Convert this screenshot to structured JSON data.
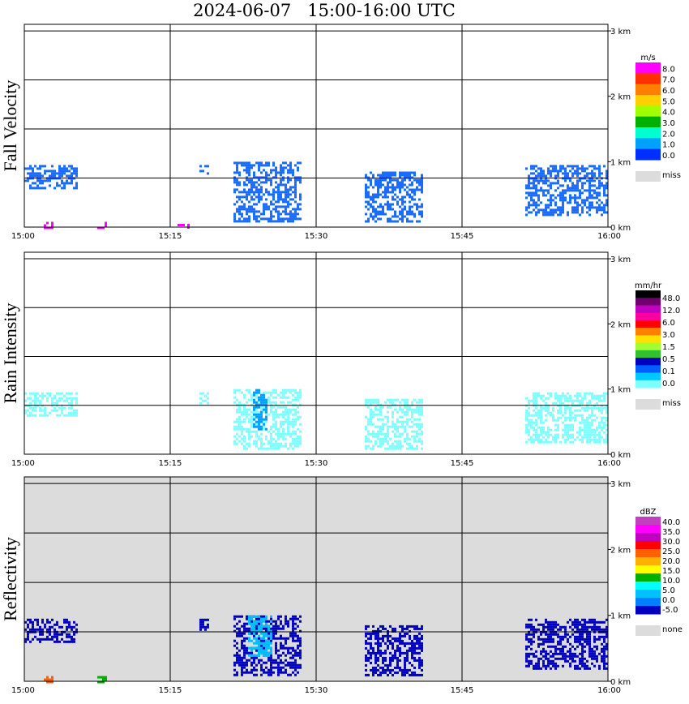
{
  "title": "2024-06-07   15:00-16:00 UTC",
  "x_ticks": [
    "15:00",
    "15:15",
    "15:30",
    "15:45",
    "16:00"
  ],
  "y_ticks": [
    "0 km",
    "1 km",
    "2 km",
    "3 km"
  ],
  "chart_data": [
    {
      "type": "heatmap",
      "ylabel": "Fall Velocity",
      "background": "#ffffff",
      "colorbar": {
        "unit": "m/s",
        "labels": [
          "8.0",
          "7.0",
          "6.0",
          "5.0",
          "4.0",
          "3.0",
          "2.0",
          "1.0",
          "0.0"
        ],
        "colors": [
          "#ff00ff",
          "#ff3000",
          "#ff8000",
          "#ffd000",
          "#a0ff00",
          "#00b000",
          "#00ffd0",
          "#00a0ff",
          "#0030ff"
        ],
        "miss_label": "miss",
        "miss_color": "#dcdcdc"
      },
      "blobs": [
        {
          "t0": 0.0,
          "t1": 5.5,
          "h0": 0.6,
          "h1": 0.95,
          "color": "#1a6cff"
        },
        {
          "t0": 18.0,
          "t1": 18.8,
          "h0": 0.8,
          "h1": 0.95,
          "color": "#1a6cff"
        },
        {
          "t0": 21.5,
          "t1": 28.5,
          "h0": 0.1,
          "h1": 1.0,
          "color": "#1a6cff"
        },
        {
          "t0": 35.0,
          "t1": 41.0,
          "h0": 0.1,
          "h1": 0.85,
          "color": "#1a6cff"
        },
        {
          "t0": 51.5,
          "t1": 60.0,
          "h0": 0.2,
          "h1": 0.95,
          "color": "#1a6cff"
        },
        {
          "t0": 2.0,
          "t1": 3.0,
          "h0": 0.0,
          "h1": 0.08,
          "color": "#ff00ff"
        },
        {
          "t0": 7.5,
          "t1": 8.5,
          "h0": 0.0,
          "h1": 0.08,
          "color": "#ff00ff"
        },
        {
          "t0": 15.5,
          "t1": 17.0,
          "h0": 0.0,
          "h1": 0.05,
          "color": "#ff00ff"
        }
      ]
    },
    {
      "type": "heatmap",
      "ylabel": "Rain Intensity",
      "background": "#ffffff",
      "colorbar": {
        "unit": "mm/hr",
        "labels": [
          "48.0",
          "12.0",
          "6.0",
          "3.0",
          "1.5",
          "0.5",
          "0.1",
          "0.0"
        ],
        "colors": [
          "#000000",
          "#700070",
          "#c000c0",
          "#ff00a0",
          "#ff0000",
          "#ff8000",
          "#ffe000",
          "#a0ff30",
          "#30c030",
          "#0000c0",
          "#0060ff",
          "#00c8ff",
          "#80ffff"
        ],
        "miss_label": "miss",
        "miss_color": "#dcdcdc"
      },
      "blobs": [
        {
          "t0": 0.0,
          "t1": 5.5,
          "h0": 0.6,
          "h1": 0.95,
          "color": "#80ffff"
        },
        {
          "t0": 18.0,
          "t1": 18.8,
          "h0": 0.8,
          "h1": 0.95,
          "color": "#80ffff"
        },
        {
          "t0": 21.5,
          "t1": 28.5,
          "h0": 0.1,
          "h1": 1.0,
          "color": "#80ffff"
        },
        {
          "t0": 23.5,
          "t1": 24.8,
          "h0": 0.4,
          "h1": 1.0,
          "color": "#00a0ff"
        },
        {
          "t0": 35.0,
          "t1": 41.0,
          "h0": 0.1,
          "h1": 0.85,
          "color": "#80ffff"
        },
        {
          "t0": 51.5,
          "t1": 60.0,
          "h0": 0.2,
          "h1": 0.95,
          "color": "#80ffff"
        }
      ]
    },
    {
      "type": "heatmap",
      "ylabel": "Reflectivity",
      "background": "#dcdcdc",
      "colorbar": {
        "unit": "dBZ",
        "labels": [
          "40.0",
          "35.0",
          "30.0",
          "25.0",
          "20.0",
          "15.0",
          "10.0",
          "5.0",
          "0.0",
          "-5.0"
        ],
        "colors": [
          "#c040c0",
          "#ff00ff",
          "#c000c0",
          "#ff0000",
          "#ff6000",
          "#ffb000",
          "#ffff00",
          "#00b000",
          "#00ffff",
          "#00c0ff",
          "#0080ff",
          "#0000c0"
        ],
        "miss_label": "none",
        "miss_color": "#dcdcdc"
      },
      "blobs": [
        {
          "t0": 0.0,
          "t1": 5.5,
          "h0": 0.6,
          "h1": 0.95,
          "color": "#0000c0"
        },
        {
          "t0": 18.0,
          "t1": 18.8,
          "h0": 0.8,
          "h1": 0.95,
          "color": "#0000c0"
        },
        {
          "t0": 21.5,
          "t1": 28.5,
          "h0": 0.1,
          "h1": 1.0,
          "color": "#0000c0"
        },
        {
          "t0": 23.0,
          "t1": 25.5,
          "h0": 0.4,
          "h1": 1.0,
          "color": "#00c0ff"
        },
        {
          "t0": 35.0,
          "t1": 41.0,
          "h0": 0.1,
          "h1": 0.85,
          "color": "#0000c0"
        },
        {
          "t0": 51.5,
          "t1": 60.0,
          "h0": 0.2,
          "h1": 0.95,
          "color": "#0000c0"
        },
        {
          "t0": 2.0,
          "t1": 3.0,
          "h0": 0.0,
          "h1": 0.08,
          "color": "#ff6000"
        },
        {
          "t0": 7.5,
          "t1": 8.5,
          "h0": 0.0,
          "h1": 0.08,
          "color": "#00b000"
        }
      ]
    }
  ]
}
